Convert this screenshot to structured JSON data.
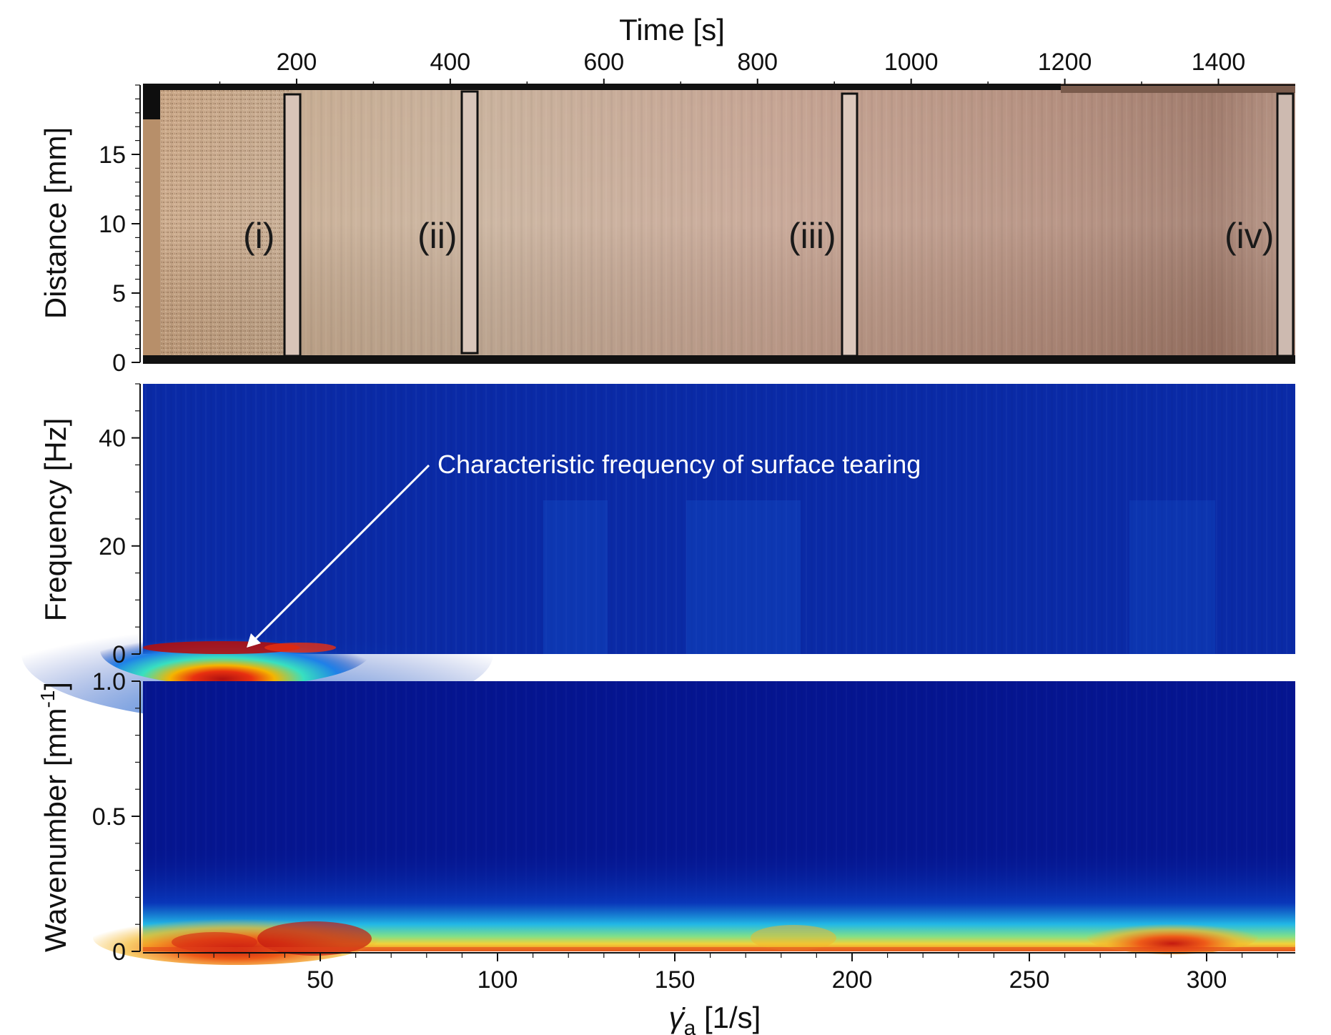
{
  "chart_data": [
    {
      "type": "heatmap",
      "panel": "top",
      "description_role": "space-time image",
      "title": "",
      "xlabel": "Time [s]",
      "ylabel": "Distance [mm]",
      "xaxis_position": "top",
      "xlim": [
        0,
        1500
      ],
      "ylim": [
        0,
        20
      ],
      "xticks": [
        200,
        400,
        600,
        800,
        1000,
        1200,
        1400
      ],
      "yticks": [
        0,
        5,
        10,
        15
      ],
      "regions": [
        {
          "label": "(i)",
          "x": 200
        },
        {
          "label": "(ii)",
          "x": 425
        },
        {
          "label": "(iii)",
          "x": 920
        },
        {
          "label": "(iv)",
          "x": 1485
        }
      ],
      "colors": {
        "start": "#c9a98a",
        "mid": "#c4a592",
        "end": "#9e7a6a"
      }
    },
    {
      "type": "heatmap",
      "panel": "middle",
      "title": "",
      "xlabel": "",
      "ylabel": "Frequency [Hz]",
      "xlim": [
        0,
        325
      ],
      "ylim": [
        0,
        50
      ],
      "yticks": [
        0,
        20,
        40
      ],
      "annotation": {
        "text": "Characteristic frequency of surface tearing",
        "arrow_to": {
          "x": 30,
          "y": 2
        }
      },
      "hotspot": {
        "x_range": [
          2,
          55
        ],
        "y_range": [
          0,
          3
        ],
        "peak_x": 30
      },
      "background_color": "#0a2aa6"
    },
    {
      "type": "heatmap",
      "panel": "bottom",
      "title": "",
      "xlabel": "γ̇a [1/s]",
      "ylabel": "Wavenumber [mm-1]",
      "xlim": [
        0,
        325
      ],
      "ylim": [
        0,
        1.0
      ],
      "xticks": [
        50,
        100,
        150,
        200,
        250,
        300
      ],
      "yticks": [
        0,
        0.5,
        1.0
      ],
      "hotspots": [
        {
          "x": 25,
          "y": 0.04
        },
        {
          "x": 50,
          "y": 0.05
        },
        {
          "x": 290,
          "y": 0.04
        }
      ],
      "background_color": "#051590"
    }
  ],
  "labels": {
    "top_xlabel": "Time [s]",
    "top_ylabel": "Distance [mm]",
    "mid_ylabel": "Frequency [Hz]",
    "bot_ylabel_main": "Wavenumber [mm",
    "bot_ylabel_sup": "-1",
    "bot_ylabel_end": "]",
    "bot_xlabel_sym": "γ̇",
    "bot_xlabel_sub": "a",
    "bot_xlabel_unit": " [1/s]",
    "annotation": "Characteristic frequency of surface tearing"
  }
}
